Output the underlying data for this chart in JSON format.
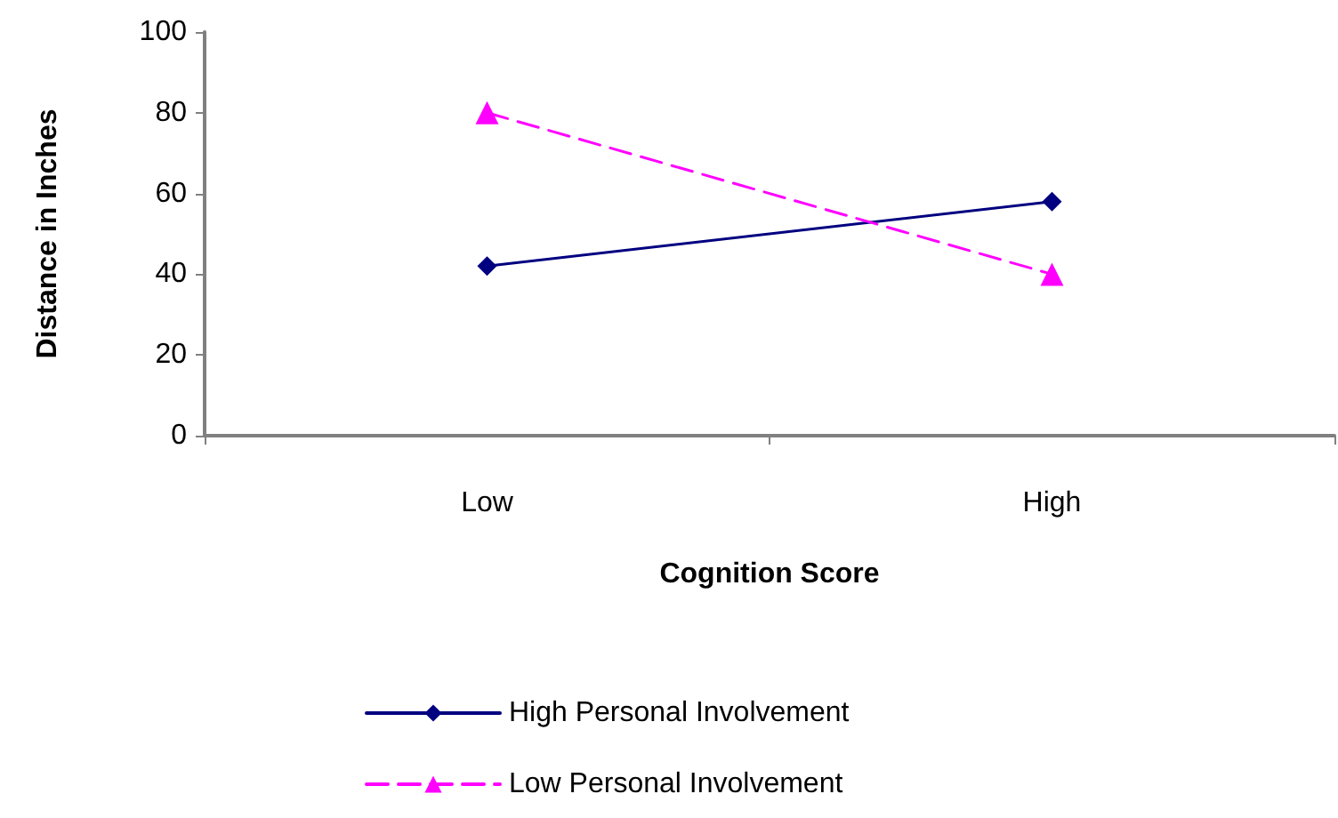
{
  "chart_data": {
    "type": "line",
    "xlabel": "Cognition Score",
    "ylabel": "Distance in Inches",
    "categories": [
      "Low",
      "High"
    ],
    "ylim": [
      0,
      100
    ],
    "yticks": [
      0,
      20,
      40,
      60,
      80,
      100
    ],
    "grid": false,
    "legend": "bottom",
    "series": [
      {
        "name": "High Personal Involvement",
        "color": "#000080",
        "values": [
          42,
          58
        ],
        "marker": "diamond",
        "line_style": "solid"
      },
      {
        "name": "Low Personal Involvement",
        "color": "#ff00ff",
        "values": [
          80,
          40
        ],
        "marker": "triangle",
        "line_style": "dashed"
      }
    ]
  }
}
